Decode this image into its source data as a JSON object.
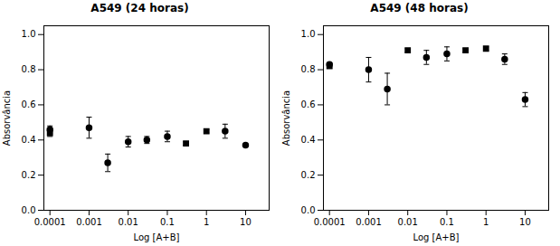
{
  "chart_data": [
    {
      "type": "scatter",
      "title": "A549 (24 horas)",
      "xlabel": "Log [A+B]",
      "ylabel": "Absorvância",
      "x": [
        0.0001,
        0.0001,
        0.001,
        0.003,
        0.01,
        0.03,
        0.1,
        0.3,
        1,
        3,
        10
      ],
      "values": [
        0.46,
        0.44,
        0.47,
        0.27,
        0.39,
        0.4,
        0.42,
        0.38,
        0.45,
        0.45,
        0.37
      ],
      "yerr": [
        0.02,
        0.02,
        0.06,
        0.05,
        0.03,
        0.02,
        0.03,
        0.01,
        0.01,
        0.04,
        0.0
      ],
      "marker": [
        "circle",
        "square",
        "circle",
        "circle",
        "circle",
        "circle",
        "circle",
        "square",
        "square",
        "circle",
        "circle"
      ],
      "color": "#000000",
      "log": "x",
      "xlim": [
        7e-05,
        40
      ],
      "xticks": [
        0.0001,
        0.001,
        0.01,
        0.1,
        1,
        10
      ],
      "ylim": [
        0.0,
        1.05
      ],
      "yticks": [
        {
          "value": 0.0,
          "label": "0.0"
        },
        0.2,
        0.4,
        0.6,
        0.8,
        {
          "value": 1.0,
          "label": "1.0"
        }
      ],
      "grid": false
    },
    {
      "type": "scatter",
      "title": "A549 (48 horas)",
      "xlabel": "Log [A+B]",
      "ylabel": "Absorvância",
      "x": [
        0.0001,
        0.0001,
        0.001,
        0.003,
        0.01,
        0.03,
        0.1,
        0.3,
        1,
        3,
        10
      ],
      "values": [
        0.83,
        0.82,
        0.8,
        0.69,
        0.91,
        0.87,
        0.89,
        0.91,
        0.92,
        0.86,
        0.63
      ],
      "yerr": [
        0.01,
        0.01,
        0.07,
        0.09,
        0.01,
        0.04,
        0.04,
        0.01,
        0.01,
        0.03,
        0.04
      ],
      "marker": [
        "circle",
        "square",
        "circle",
        "circle",
        "square",
        "circle",
        "circle",
        "square",
        "square",
        "circle",
        "circle"
      ],
      "color": "#000000",
      "log": "x",
      "xlim": [
        7e-05,
        40
      ],
      "xticks": [
        0.0001,
        0.001,
        0.01,
        0.1,
        1,
        10
      ],
      "ylim": [
        0.0,
        1.05
      ],
      "yticks": [
        {
          "value": 0.0,
          "label": "0.0"
        },
        0.2,
        0.4,
        0.6,
        0.8,
        {
          "value": 1.0,
          "label": "1.0"
        }
      ],
      "grid": false
    }
  ]
}
